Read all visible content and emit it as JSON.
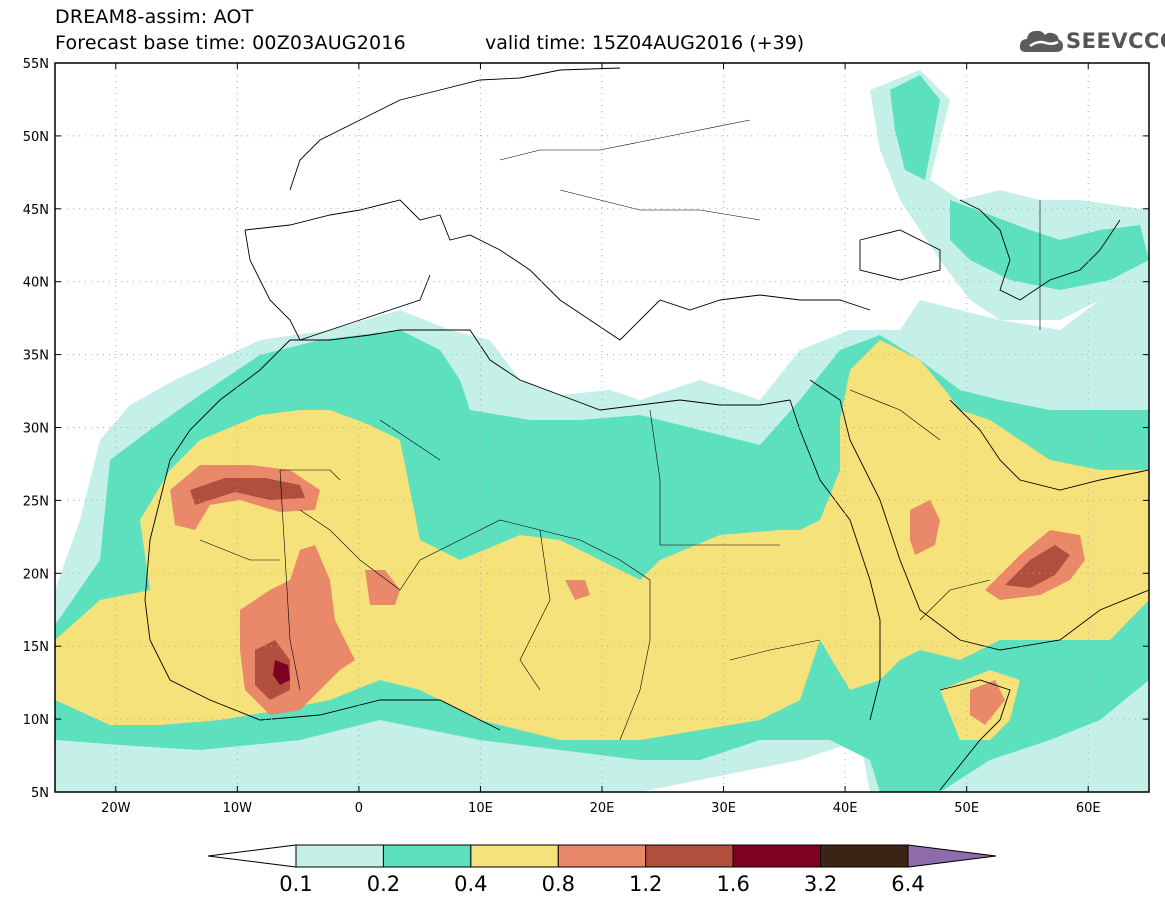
{
  "title": {
    "line1": "DREAM8-assim: AOT",
    "line2": "Forecast base time: 00Z03AUG2016",
    "valid": "valid time: 15Z04AUG2016 (+39)"
  },
  "logo": {
    "text": "SEEVCCC",
    "icon": "cloud-icon"
  },
  "map": {
    "lon_range": [
      -25,
      65
    ],
    "lat_range": [
      5,
      55
    ],
    "lat_ticks": [
      "5N",
      "10N",
      "15N",
      "20N",
      "25N",
      "30N",
      "35N",
      "40N",
      "45N",
      "50N",
      "55N"
    ],
    "lon_ticks": [
      "20W",
      "10W",
      "0",
      "10E",
      "20E",
      "30E",
      "40E",
      "50E",
      "60E"
    ],
    "grid": "dotted"
  },
  "legend": {
    "levels": [
      "0.1",
      "0.2",
      "0.4",
      "0.8",
      "1.2",
      "1.6",
      "3.2",
      "6.4"
    ],
    "colors": [
      "#ffffff",
      "#c5f0e8",
      "#5ce0bd",
      "#f6e27a",
      "#e9896a",
      "#b14f3f",
      "#800020",
      "#3c2415",
      "#8e6bab"
    ]
  }
}
